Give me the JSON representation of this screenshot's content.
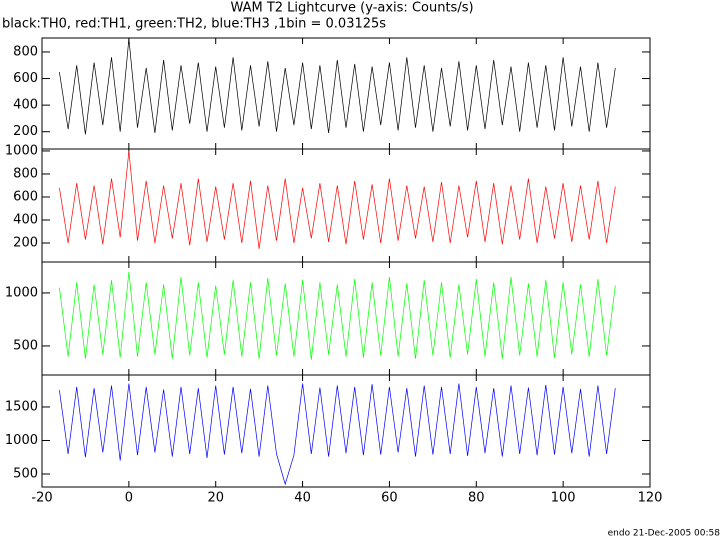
{
  "title": "WAM T2 Lightcurve (y-axis: Counts/s)",
  "subtitle": "black:TH0, red:TH1, green:TH2, blue:TH3 ,1bin = 0.03125s",
  "footer": "endo 21-Dec-2005 00:58",
  "chart_data": [
    {
      "type": "line",
      "color": "#000000",
      "x": [
        -16,
        -14,
        -12,
        -10,
        -8,
        -6,
        -4,
        -2,
        0,
        2,
        4,
        6,
        8,
        10,
        12,
        14,
        16,
        18,
        20,
        22,
        24,
        26,
        28,
        30,
        32,
        34,
        36,
        38,
        40,
        42,
        44,
        46,
        48,
        50,
        52,
        54,
        56,
        58,
        60,
        62,
        64,
        66,
        68,
        70,
        72,
        74,
        76,
        78,
        80,
        82,
        84,
        86,
        88,
        90,
        92,
        94,
        96,
        98,
        100,
        102,
        104,
        106,
        108,
        110,
        112
      ],
      "values": [
        650,
        220,
        700,
        180,
        720,
        250,
        760,
        200,
        900,
        230,
        680,
        190,
        740,
        210,
        700,
        260,
        720,
        200,
        690,
        230,
        760,
        210,
        700,
        240,
        730,
        200,
        680,
        250,
        720,
        220,
        700,
        190,
        740,
        230,
        710,
        200,
        690,
        250,
        720,
        210,
        760,
        230,
        700,
        200,
        680,
        240,
        730,
        210,
        700,
        220,
        740,
        250,
        690,
        200,
        720,
        230,
        700,
        210,
        760,
        240,
        690,
        200,
        720,
        230,
        680
      ],
      "xlim": [
        -20,
        120
      ],
      "ylim": [
        70,
        905
      ],
      "yticks": [
        200,
        400,
        600,
        800
      ]
    },
    {
      "type": "line",
      "color": "#ff0000",
      "x": [
        -16,
        -14,
        -12,
        -10,
        -8,
        -6,
        -4,
        -2,
        0,
        2,
        4,
        6,
        8,
        10,
        12,
        14,
        16,
        18,
        20,
        22,
        24,
        26,
        28,
        30,
        32,
        34,
        36,
        38,
        40,
        42,
        44,
        46,
        48,
        50,
        52,
        54,
        56,
        58,
        60,
        62,
        64,
        66,
        68,
        70,
        72,
        74,
        76,
        78,
        80,
        82,
        84,
        86,
        88,
        90,
        92,
        94,
        96,
        98,
        100,
        102,
        104,
        106,
        108,
        110,
        112
      ],
      "values": [
        680,
        200,
        720,
        230,
        700,
        190,
        760,
        250,
        1000,
        220,
        740,
        200,
        700,
        240,
        720,
        180,
        760,
        210,
        690,
        230,
        720,
        200,
        740,
        150,
        700,
        220,
        760,
        200,
        680,
        240,
        720,
        210,
        700,
        190,
        740,
        230,
        710,
        200,
        760,
        220,
        700,
        240,
        690,
        210,
        730,
        200,
        700,
        250,
        740,
        210,
        720,
        190,
        700,
        230,
        760,
        200,
        690,
        240,
        720,
        210,
        700,
        230,
        740,
        200,
        690
      ],
      "xlim": [
        -20,
        120
      ],
      "ylim": [
        35,
        1017
      ],
      "yticks": [
        200,
        400,
        600,
        800,
        1000
      ]
    },
    {
      "type": "line",
      "color": "#00ff00",
      "x": [
        -16,
        -14,
        -12,
        -10,
        -8,
        -6,
        -4,
        -2,
        0,
        2,
        4,
        6,
        8,
        10,
        12,
        14,
        16,
        18,
        20,
        22,
        24,
        26,
        28,
        30,
        32,
        34,
        36,
        38,
        40,
        42,
        44,
        46,
        48,
        50,
        52,
        54,
        56,
        58,
        60,
        62,
        64,
        66,
        68,
        70,
        72,
        74,
        76,
        78,
        80,
        82,
        84,
        86,
        88,
        90,
        92,
        94,
        96,
        98,
        100,
        102,
        104,
        106,
        108,
        110,
        112
      ],
      "values": [
        1050,
        400,
        1100,
        380,
        1080,
        420,
        1120,
        390,
        1200,
        400,
        1100,
        420,
        1080,
        380,
        1150,
        410,
        1100,
        390,
        1070,
        420,
        1120,
        400,
        1100,
        380,
        1140,
        410,
        1090,
        400,
        1120,
        370,
        1100,
        420,
        1080,
        400,
        1130,
        390,
        1100,
        410,
        1150,
        400,
        1090,
        380,
        1120,
        410,
        1100,
        390,
        1080,
        420,
        1130,
        400,
        1100,
        380,
        1150,
        410,
        1090,
        400,
        1120,
        390,
        1100,
        420,
        1080,
        400,
        1130,
        410,
        1070
      ],
      "xlim": [
        -20,
        120
      ],
      "ylim": [
        226,
        1292
      ],
      "yticks": [
        500,
        1000
      ]
    },
    {
      "type": "line",
      "color": "#0000ff",
      "x": [
        -16,
        -14,
        -12,
        -10,
        -8,
        -6,
        -4,
        -2,
        0,
        2,
        4,
        6,
        8,
        10,
        12,
        14,
        16,
        18,
        20,
        22,
        24,
        26,
        28,
        30,
        32,
        34,
        36,
        38,
        40,
        42,
        44,
        46,
        48,
        50,
        52,
        54,
        56,
        58,
        60,
        62,
        64,
        66,
        68,
        70,
        72,
        74,
        76,
        78,
        80,
        82,
        84,
        86,
        88,
        90,
        92,
        94,
        96,
        98,
        100,
        102,
        104,
        106,
        108,
        110,
        112
      ],
      "values": [
        1750,
        800,
        1800,
        750,
        1780,
        820,
        1820,
        700,
        1850,
        780,
        1800,
        820,
        1760,
        760,
        1800,
        800,
        1780,
        740,
        1820,
        790,
        1800,
        810,
        1770,
        760,
        1820,
        800,
        350,
        780,
        1850,
        800,
        1790,
        760,
        1820,
        810,
        1800,
        780,
        1840,
        790,
        1800,
        820,
        1780,
        760,
        1820,
        790,
        1800,
        800,
        1850,
        770,
        1800,
        810,
        1780,
        760,
        1820,
        800,
        1790,
        780,
        1830,
        790,
        1800,
        810,
        1770,
        760,
        1820,
        800,
        1780
      ],
      "xlim": [
        -20,
        120
      ],
      "ylim": [
        306,
        1977
      ],
      "yticks": [
        500,
        1000,
        1500
      ],
      "xticks": [
        -20,
        0,
        20,
        40,
        60,
        80,
        100,
        120
      ]
    }
  ]
}
